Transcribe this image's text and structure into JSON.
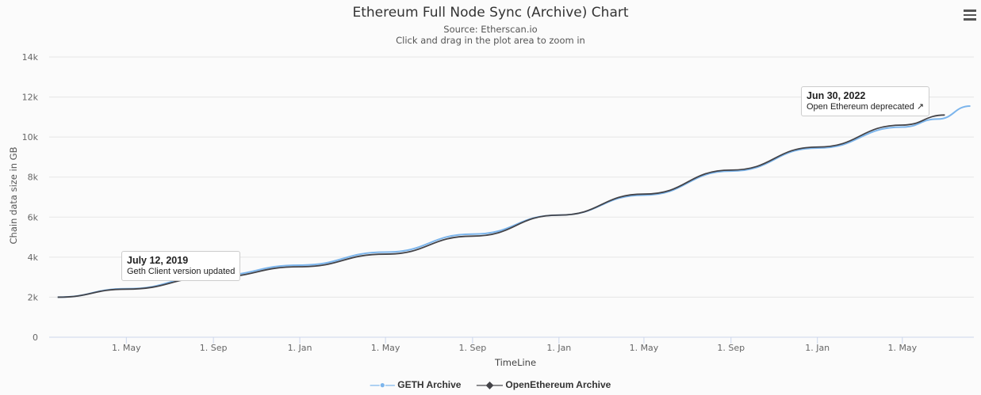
{
  "chart_data": {
    "type": "line",
    "title": "Ethereum Full Node Sync (Archive) Chart",
    "subtitle": "Source: Etherscan.io",
    "hint": "Click and drag in the plot area to zoom in",
    "xlabel": "TimeLine",
    "ylabel": "Chain data size in GB",
    "ylim": [
      0,
      14000
    ],
    "xlim": [
      "2019-01-12",
      "2022-08-10"
    ],
    "yticks": [
      {
        "v": 0,
        "label": "0"
      },
      {
        "v": 2000,
        "label": "2k"
      },
      {
        "v": 4000,
        "label": "4k"
      },
      {
        "v": 6000,
        "label": "6k"
      },
      {
        "v": 8000,
        "label": "8k"
      },
      {
        "v": 10000,
        "label": "10k"
      },
      {
        "v": 12000,
        "label": "12k"
      },
      {
        "v": 14000,
        "label": "14k"
      }
    ],
    "xticks": [
      {
        "d": "2019-05-01",
        "label": "1. May"
      },
      {
        "d": "2019-09-01",
        "label": "1. Sep"
      },
      {
        "d": "2020-01-01",
        "label": "1. Jan"
      },
      {
        "d": "2020-05-01",
        "label": "1. May"
      },
      {
        "d": "2020-09-01",
        "label": "1. Sep"
      },
      {
        "d": "2021-01-01",
        "label": "1. Jan"
      },
      {
        "d": "2021-05-01",
        "label": "1. May"
      },
      {
        "d": "2021-09-01",
        "label": "1. Sep"
      },
      {
        "d": "2022-01-01",
        "label": "1. Jan"
      },
      {
        "d": "2022-05-01",
        "label": "1. May"
      }
    ],
    "grid": true,
    "legend_placement": "bottom-center",
    "series": [
      {
        "name": "GETH Archive",
        "color": "#7cb5ec",
        "x": [
          "2019-01-24",
          "2019-05-01",
          "2019-09-01",
          "2020-01-01",
          "2020-05-01",
          "2020-09-01",
          "2021-01-01",
          "2021-05-01",
          "2021-09-01",
          "2022-01-01",
          "2022-05-01",
          "2022-06-20",
          "2022-08-05"
        ],
        "y": [
          2000,
          2420,
          3080,
          3600,
          4250,
          5150,
          6100,
          7100,
          8300,
          9450,
          10500,
          10900,
          11550
        ]
      },
      {
        "name": "OpenEthereum Archive",
        "color": "#434348",
        "x": [
          "2019-01-24",
          "2019-05-01",
          "2019-09-01",
          "2020-01-01",
          "2020-05-01",
          "2020-09-01",
          "2021-01-01",
          "2021-05-01",
          "2021-09-01",
          "2022-01-01",
          "2022-05-01",
          "2022-06-30"
        ],
        "y": [
          2000,
          2400,
          3000,
          3520,
          4150,
          5050,
          6100,
          7150,
          8350,
          9500,
          10600,
          11100
        ]
      }
    ],
    "annotations": [
      {
        "date": "July 12, 2019",
        "text": "Geth Client version updated"
      },
      {
        "date": "Jun 30, 2022",
        "text": "Open Ethereum deprecated"
      }
    ]
  },
  "ui": {
    "menu_icon": "hamburger-icon",
    "external_link_icon": "external-link-icon"
  }
}
